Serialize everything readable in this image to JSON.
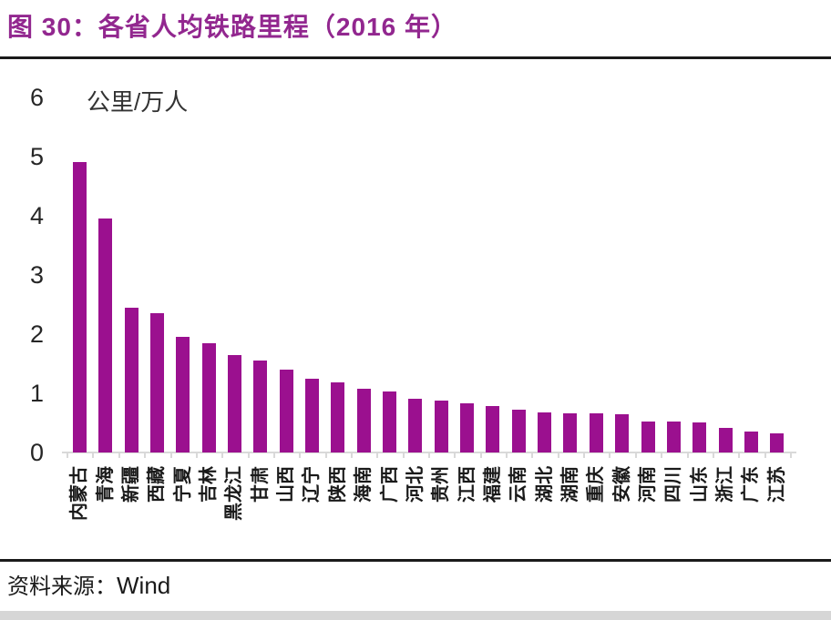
{
  "title": "图 30：各省人均铁路里程（2016 年）",
  "footer": {
    "source_label": "资料来源：",
    "source_value": "Wind"
  },
  "colors": {
    "bar": "#9B108F",
    "title": "#92278F",
    "axis": "#D9D9D9",
    "text": "#1A1A1A",
    "bottom_strip": "#D6D6D6"
  },
  "chart_data": {
    "type": "bar",
    "title": "图 30：各省人均铁路里程（2016 年）",
    "unit_label": "公里/万人",
    "xlabel": "",
    "ylabel": "公里/万人",
    "ylim": [
      0,
      6
    ],
    "yticks": [
      0,
      1,
      2,
      3,
      4,
      5,
      6
    ],
    "grid": false,
    "legend": "none",
    "categories": [
      "内蒙古",
      "青海",
      "新疆",
      "西藏",
      "宁夏",
      "吉林",
      "黑龙江",
      "甘肃",
      "山西",
      "辽宁",
      "陕西",
      "海南",
      "广西",
      "河北",
      "贵州",
      "江西",
      "福建",
      "云南",
      "湖北",
      "湖南",
      "重庆",
      "安徽",
      "河南",
      "四川",
      "山东",
      "浙江",
      "广东",
      "江苏"
    ],
    "values": [
      4.9,
      3.95,
      2.45,
      2.35,
      1.95,
      1.85,
      1.65,
      1.55,
      1.4,
      1.25,
      1.18,
      1.08,
      1.03,
      0.9,
      0.88,
      0.83,
      0.78,
      0.72,
      0.67,
      0.66,
      0.66,
      0.65,
      0.53,
      0.52,
      0.5,
      0.42,
      0.35,
      0.32
    ]
  }
}
